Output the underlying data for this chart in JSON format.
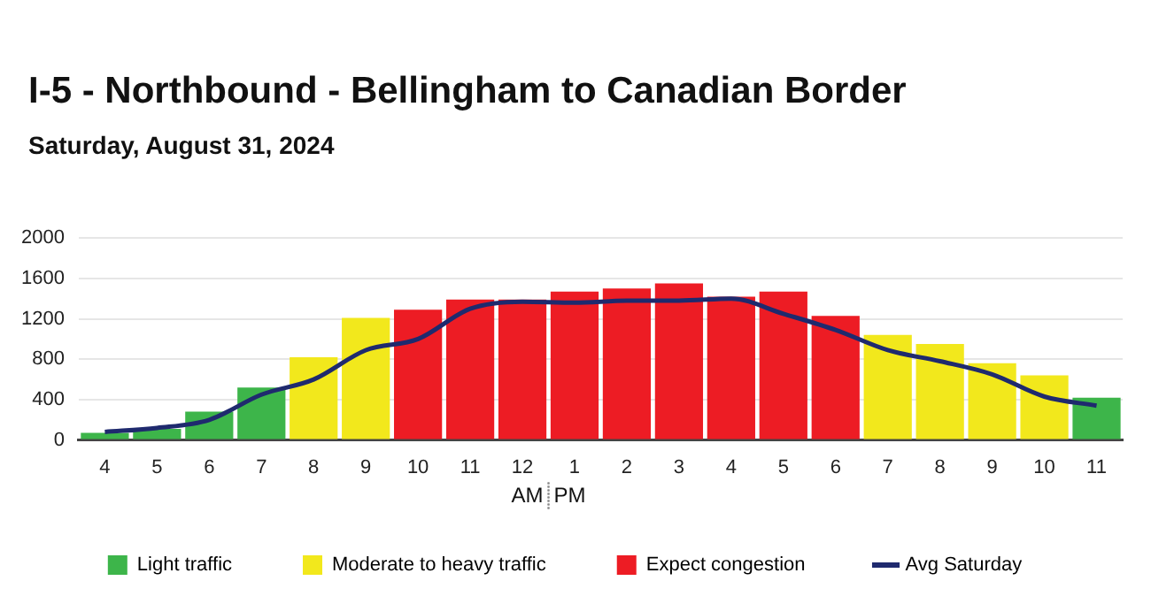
{
  "chart_data": {
    "type": "bar",
    "title": "I-5 - Northbound - Bellingham to Canadian Border",
    "subtitle": "Saturday, August 31, 2024",
    "categories": [
      "4",
      "5",
      "6",
      "7",
      "8",
      "9",
      "10",
      "11",
      "12",
      "1",
      "2",
      "3",
      "4",
      "5",
      "6",
      "7",
      "8",
      "9",
      "10",
      "11"
    ],
    "series": [
      {
        "name": "Light traffic",
        "color": "#3db54a",
        "values": [
          70,
          110,
          280,
          520,
          null,
          null,
          null,
          null,
          null,
          null,
          null,
          null,
          null,
          null,
          null,
          null,
          null,
          null,
          null,
          420
        ]
      },
      {
        "name": "Moderate to heavy traffic",
        "color": "#f2e81c",
        "values": [
          null,
          null,
          null,
          null,
          820,
          1210,
          null,
          null,
          null,
          null,
          null,
          null,
          null,
          null,
          null,
          1040,
          950,
          760,
          640,
          null
        ]
      },
      {
        "name": "Expect congestion",
        "color": "#ed1c24",
        "values": [
          null,
          null,
          null,
          null,
          null,
          null,
          1290,
          1390,
          1390,
          1470,
          1500,
          1550,
          1420,
          1470,
          1230,
          null,
          null,
          null,
          null,
          null
        ]
      },
      {
        "name": "Avg Saturday",
        "type": "line",
        "color": "#1f2a6e",
        "values": [
          80,
          120,
          200,
          450,
          600,
          890,
          1000,
          1300,
          1370,
          1360,
          1380,
          1380,
          1400,
          1250,
          1090,
          890,
          780,
          650,
          430,
          340
        ]
      }
    ],
    "ylim": [
      0,
      2000
    ],
    "yticks": [
      0,
      400,
      800,
      1200,
      1600,
      2000
    ],
    "grid": "y",
    "legend": "bottom",
    "marker": "none",
    "annotations": [
      "AM",
      "PM"
    ]
  }
}
